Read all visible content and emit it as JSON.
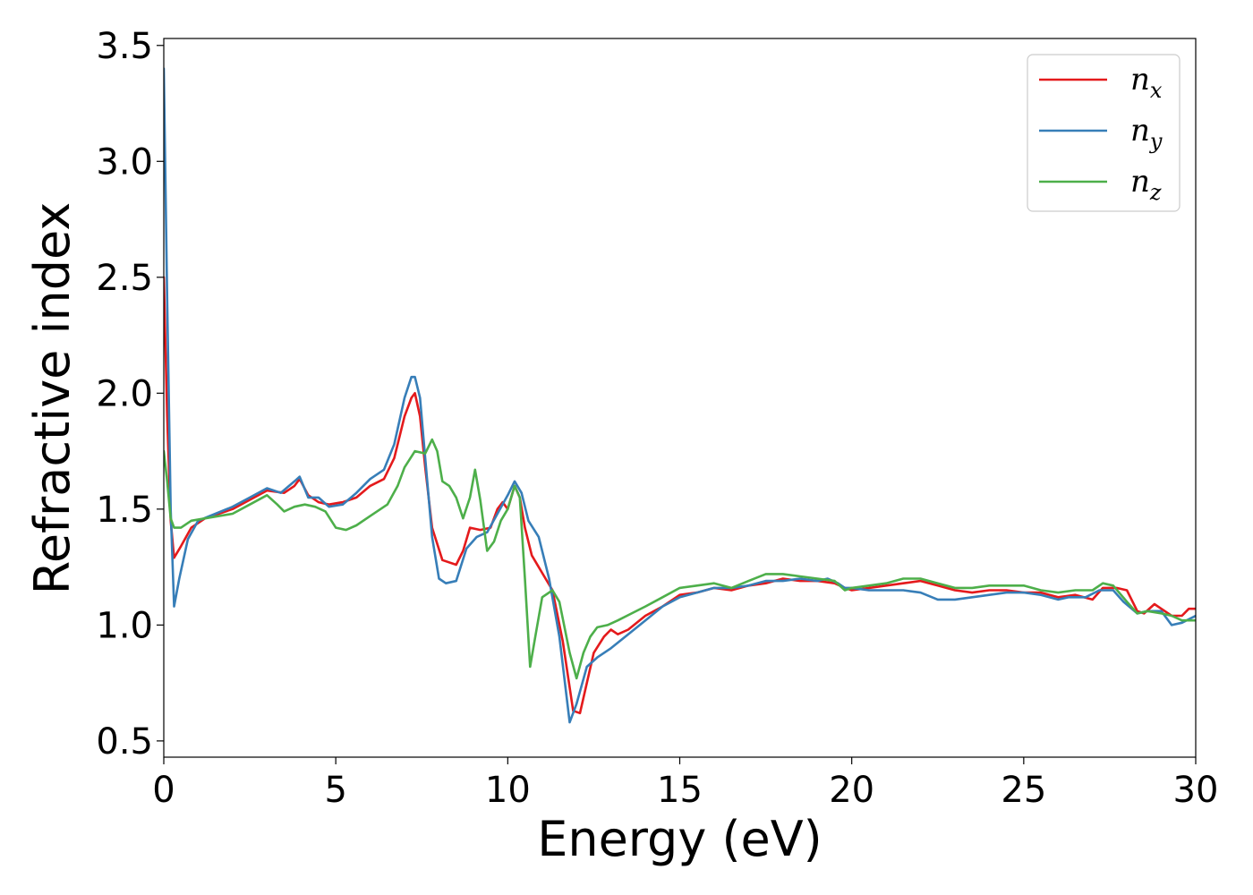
{
  "chart_data": {
    "type": "line",
    "title": "",
    "xlabel": "Energy (eV)",
    "ylabel": "Refractive index",
    "xlim": [
      0,
      30
    ],
    "ylim": [
      0.43,
      3.53
    ],
    "xticks": [
      0,
      5,
      10,
      15,
      20,
      25,
      30
    ],
    "yticks": [
      0.5,
      1.0,
      1.5,
      2.0,
      2.5,
      3.0,
      3.5
    ],
    "grid": false,
    "legend_position": "top-right",
    "series": [
      {
        "name": "n_x",
        "label_base": "n",
        "label_sub": "x",
        "color": "#e41a1c",
        "points": [
          [
            0,
            2.5
          ],
          [
            0.1,
            1.9
          ],
          [
            0.2,
            1.45
          ],
          [
            0.3,
            1.29
          ],
          [
            0.5,
            1.34
          ],
          [
            0.8,
            1.42
          ],
          [
            1.2,
            1.46
          ],
          [
            2,
            1.5
          ],
          [
            2.5,
            1.54
          ],
          [
            3,
            1.58
          ],
          [
            3.5,
            1.57
          ],
          [
            3.8,
            1.6
          ],
          [
            3.95,
            1.63
          ],
          [
            4.2,
            1.56
          ],
          [
            4.5,
            1.53
          ],
          [
            4.8,
            1.52
          ],
          [
            5.2,
            1.53
          ],
          [
            5.6,
            1.55
          ],
          [
            6,
            1.6
          ],
          [
            6.4,
            1.63
          ],
          [
            6.7,
            1.72
          ],
          [
            7,
            1.9
          ],
          [
            7.2,
            1.98
          ],
          [
            7.3,
            2.0
          ],
          [
            7.45,
            1.9
          ],
          [
            7.6,
            1.68
          ],
          [
            7.8,
            1.42
          ],
          [
            8.1,
            1.28
          ],
          [
            8.5,
            1.26
          ],
          [
            8.7,
            1.32
          ],
          [
            8.9,
            1.42
          ],
          [
            9.2,
            1.41
          ],
          [
            9.5,
            1.42
          ],
          [
            9.7,
            1.5
          ],
          [
            9.85,
            1.53
          ],
          [
            10.0,
            1.5
          ],
          [
            10.2,
            1.6
          ],
          [
            10.35,
            1.55
          ],
          [
            10.5,
            1.42
          ],
          [
            10.7,
            1.3
          ],
          [
            10.9,
            1.25
          ],
          [
            11.3,
            1.15
          ],
          [
            11.6,
            0.93
          ],
          [
            11.9,
            0.63
          ],
          [
            12.1,
            0.62
          ],
          [
            12.3,
            0.75
          ],
          [
            12.5,
            0.88
          ],
          [
            12.8,
            0.95
          ],
          [
            13,
            0.98
          ],
          [
            13.2,
            0.96
          ],
          [
            13.5,
            0.98
          ],
          [
            14,
            1.04
          ],
          [
            14.5,
            1.08
          ],
          [
            15,
            1.13
          ],
          [
            15.5,
            1.14
          ],
          [
            16,
            1.16
          ],
          [
            16.5,
            1.15
          ],
          [
            17,
            1.17
          ],
          [
            17.5,
            1.18
          ],
          [
            18,
            1.2
          ],
          [
            18.5,
            1.19
          ],
          [
            19,
            1.19
          ],
          [
            19.5,
            1.18
          ],
          [
            19.8,
            1.16
          ],
          [
            20,
            1.15
          ],
          [
            20.5,
            1.16
          ],
          [
            21,
            1.17
          ],
          [
            21.5,
            1.18
          ],
          [
            22,
            1.19
          ],
          [
            22.5,
            1.17
          ],
          [
            23,
            1.15
          ],
          [
            23.5,
            1.14
          ],
          [
            24,
            1.15
          ],
          [
            24.5,
            1.15
          ],
          [
            25,
            1.14
          ],
          [
            25.5,
            1.14
          ],
          [
            26,
            1.12
          ],
          [
            26.5,
            1.13
          ],
          [
            27,
            1.11
          ],
          [
            27.3,
            1.16
          ],
          [
            27.7,
            1.16
          ],
          [
            28,
            1.15
          ],
          [
            28.3,
            1.06
          ],
          [
            28.5,
            1.05
          ],
          [
            28.8,
            1.09
          ],
          [
            29,
            1.07
          ],
          [
            29.3,
            1.04
          ],
          [
            29.6,
            1.04
          ],
          [
            29.8,
            1.07
          ],
          [
            30,
            1.07
          ]
        ]
      },
      {
        "name": "n_y",
        "label_base": "n",
        "label_sub": "y",
        "color": "#377eb8",
        "points": [
          [
            0,
            3.4
          ],
          [
            0.1,
            2.4
          ],
          [
            0.2,
            1.5
          ],
          [
            0.3,
            1.08
          ],
          [
            0.45,
            1.2
          ],
          [
            0.7,
            1.37
          ],
          [
            1.0,
            1.45
          ],
          [
            1.5,
            1.48
          ],
          [
            2,
            1.51
          ],
          [
            2.5,
            1.55
          ],
          [
            3,
            1.59
          ],
          [
            3.4,
            1.57
          ],
          [
            3.8,
            1.62
          ],
          [
            3.95,
            1.64
          ],
          [
            4.2,
            1.55
          ],
          [
            4.5,
            1.55
          ],
          [
            4.8,
            1.51
          ],
          [
            5.2,
            1.52
          ],
          [
            5.6,
            1.57
          ],
          [
            6,
            1.63
          ],
          [
            6.4,
            1.67
          ],
          [
            6.7,
            1.78
          ],
          [
            7,
            1.98
          ],
          [
            7.2,
            2.07
          ],
          [
            7.3,
            2.07
          ],
          [
            7.45,
            1.98
          ],
          [
            7.6,
            1.72
          ],
          [
            7.8,
            1.38
          ],
          [
            8.0,
            1.2
          ],
          [
            8.2,
            1.18
          ],
          [
            8.5,
            1.19
          ],
          [
            8.8,
            1.33
          ],
          [
            9.1,
            1.38
          ],
          [
            9.4,
            1.4
          ],
          [
            9.7,
            1.48
          ],
          [
            10.0,
            1.56
          ],
          [
            10.2,
            1.62
          ],
          [
            10.4,
            1.57
          ],
          [
            10.6,
            1.45
          ],
          [
            10.9,
            1.38
          ],
          [
            11.2,
            1.2
          ],
          [
            11.5,
            0.95
          ],
          [
            11.8,
            0.58
          ],
          [
            12.0,
            0.66
          ],
          [
            12.3,
            0.82
          ],
          [
            12.6,
            0.86
          ],
          [
            13,
            0.9
          ],
          [
            13.5,
            0.96
          ],
          [
            14,
            1.02
          ],
          [
            14.5,
            1.08
          ],
          [
            15,
            1.12
          ],
          [
            15.5,
            1.14
          ],
          [
            16,
            1.16
          ],
          [
            16.5,
            1.16
          ],
          [
            17,
            1.17
          ],
          [
            17.5,
            1.19
          ],
          [
            18,
            1.19
          ],
          [
            18.5,
            1.2
          ],
          [
            19,
            1.19
          ],
          [
            19.3,
            1.2
          ],
          [
            19.6,
            1.18
          ],
          [
            19.8,
            1.16
          ],
          [
            20,
            1.16
          ],
          [
            20.5,
            1.15
          ],
          [
            21,
            1.15
          ],
          [
            21.5,
            1.15
          ],
          [
            22,
            1.14
          ],
          [
            22.5,
            1.11
          ],
          [
            23,
            1.11
          ],
          [
            23.5,
            1.12
          ],
          [
            24,
            1.13
          ],
          [
            24.5,
            1.14
          ],
          [
            25,
            1.14
          ],
          [
            25.5,
            1.13
          ],
          [
            26,
            1.11
          ],
          [
            26.3,
            1.12
          ],
          [
            26.8,
            1.12
          ],
          [
            27.2,
            1.15
          ],
          [
            27.6,
            1.15
          ],
          [
            27.9,
            1.1
          ],
          [
            28.3,
            1.05
          ],
          [
            28.6,
            1.06
          ],
          [
            29,
            1.06
          ],
          [
            29.3,
            1.0
          ],
          [
            29.6,
            1.01
          ],
          [
            30,
            1.04
          ]
        ]
      },
      {
        "name": "n_z",
        "label_base": "n",
        "label_sub": "z",
        "color": "#4daf4a",
        "points": [
          [
            0,
            1.75
          ],
          [
            0.1,
            1.62
          ],
          [
            0.2,
            1.46
          ],
          [
            0.3,
            1.42
          ],
          [
            0.5,
            1.42
          ],
          [
            0.8,
            1.45
          ],
          [
            1.2,
            1.46
          ],
          [
            2,
            1.48
          ],
          [
            2.5,
            1.52
          ],
          [
            3,
            1.56
          ],
          [
            3.3,
            1.52
          ],
          [
            3.5,
            1.49
          ],
          [
            3.8,
            1.51
          ],
          [
            4.1,
            1.52
          ],
          [
            4.4,
            1.51
          ],
          [
            4.7,
            1.49
          ],
          [
            5.0,
            1.42
          ],
          [
            5.3,
            1.41
          ],
          [
            5.6,
            1.43
          ],
          [
            6,
            1.47
          ],
          [
            6.5,
            1.52
          ],
          [
            6.8,
            1.6
          ],
          [
            7.0,
            1.68
          ],
          [
            7.3,
            1.75
          ],
          [
            7.6,
            1.74
          ],
          [
            7.8,
            1.8
          ],
          [
            7.95,
            1.75
          ],
          [
            8.1,
            1.62
          ],
          [
            8.3,
            1.6
          ],
          [
            8.5,
            1.55
          ],
          [
            8.7,
            1.46
          ],
          [
            8.9,
            1.55
          ],
          [
            9.05,
            1.67
          ],
          [
            9.2,
            1.54
          ],
          [
            9.4,
            1.32
          ],
          [
            9.6,
            1.36
          ],
          [
            9.8,
            1.45
          ],
          [
            10.0,
            1.5
          ],
          [
            10.2,
            1.6
          ],
          [
            10.35,
            1.55
          ],
          [
            10.5,
            1.2
          ],
          [
            10.65,
            0.82
          ],
          [
            10.8,
            0.95
          ],
          [
            11.0,
            1.12
          ],
          [
            11.3,
            1.15
          ],
          [
            11.5,
            1.1
          ],
          [
            11.8,
            0.88
          ],
          [
            12.0,
            0.77
          ],
          [
            12.2,
            0.88
          ],
          [
            12.4,
            0.95
          ],
          [
            12.6,
            0.99
          ],
          [
            12.9,
            1.0
          ],
          [
            13.2,
            1.02
          ],
          [
            13.6,
            1.05
          ],
          [
            14,
            1.08
          ],
          [
            14.5,
            1.12
          ],
          [
            15,
            1.16
          ],
          [
            15.5,
            1.17
          ],
          [
            16,
            1.18
          ],
          [
            16.5,
            1.16
          ],
          [
            17,
            1.19
          ],
          [
            17.5,
            1.22
          ],
          [
            18,
            1.22
          ],
          [
            18.5,
            1.21
          ],
          [
            19,
            1.2
          ],
          [
            19.5,
            1.19
          ],
          [
            19.8,
            1.15
          ],
          [
            20,
            1.16
          ],
          [
            20.5,
            1.17
          ],
          [
            21,
            1.18
          ],
          [
            21.5,
            1.2
          ],
          [
            22,
            1.2
          ],
          [
            22.5,
            1.18
          ],
          [
            23,
            1.16
          ],
          [
            23.5,
            1.16
          ],
          [
            24,
            1.17
          ],
          [
            24.5,
            1.17
          ],
          [
            25,
            1.17
          ],
          [
            25.5,
            1.15
          ],
          [
            26,
            1.14
          ],
          [
            26.5,
            1.15
          ],
          [
            27,
            1.15
          ],
          [
            27.3,
            1.18
          ],
          [
            27.6,
            1.17
          ],
          [
            28,
            1.1
          ],
          [
            28.3,
            1.05
          ],
          [
            28.6,
            1.06
          ],
          [
            29,
            1.05
          ],
          [
            29.3,
            1.04
          ],
          [
            29.6,
            1.02
          ],
          [
            30,
            1.02
          ]
        ]
      }
    ]
  }
}
